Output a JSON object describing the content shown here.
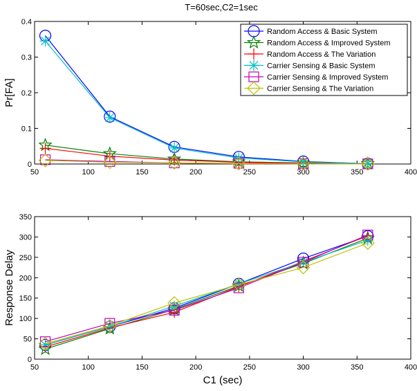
{
  "chart_data": [
    {
      "type": "line",
      "title": "T=60sec,C2=1sec",
      "xlabel": "",
      "ylabel": "Pr[FA]",
      "xlim": [
        50,
        400
      ],
      "ylim": [
        0,
        0.4
      ],
      "xticks": [
        "50",
        "100",
        "150",
        "200",
        "250",
        "300",
        "350",
        "400"
      ],
      "yticks": [
        "0",
        "0.1",
        "0.2",
        "0.3",
        "0.4"
      ],
      "legend_position": "top-right",
      "x": [
        60,
        120,
        180,
        240,
        300,
        360
      ],
      "series": [
        {
          "name": "Random Access & Basic System",
          "color": "#0000ff",
          "marker": "circle",
          "values": [
            0.36,
            0.133,
            0.048,
            0.02,
            0.007,
            0.001
          ]
        },
        {
          "name": "Random Access & Improved System",
          "color": "#008000",
          "marker": "star",
          "values": [
            0.053,
            0.029,
            0.014,
            0.006,
            0.003,
            0.001
          ]
        },
        {
          "name": "Random Access & The Variation",
          "color": "#ff0000",
          "marker": "plus",
          "values": [
            0.044,
            0.022,
            0.011,
            0.005,
            0.002,
            0.001
          ]
        },
        {
          "name": "Carrier Sensing & Basic System",
          "color": "#00bfbf",
          "marker": "asterisk",
          "values": [
            0.345,
            0.13,
            0.045,
            0.017,
            0.006,
            0.001
          ]
        },
        {
          "name": "Carrier Sensing & Improved System",
          "color": "#bf00bf",
          "marker": "square",
          "values": [
            0.012,
            0.007,
            0.003,
            0.002,
            0.001,
            0.0005
          ]
        },
        {
          "name": "Carrier Sensing & The Variation",
          "color": "#bfbf00",
          "marker": "diamond",
          "values": [
            0.01,
            0.005,
            0.003,
            0.001,
            0.0005,
            0.0002
          ]
        }
      ]
    },
    {
      "type": "line",
      "title": "",
      "xlabel": "C1 (sec)",
      "ylabel": "Response Delay",
      "xlim": [
        50,
        400
      ],
      "ylim": [
        0,
        350
      ],
      "xticks": [
        "50",
        "100",
        "150",
        "200",
        "250",
        "300",
        "350",
        "400"
      ],
      "yticks": [
        "0",
        "50",
        "100",
        "150",
        "200",
        "250",
        "300",
        "350"
      ],
      "x": [
        60,
        120,
        180,
        240,
        300,
        360
      ],
      "series": [
        {
          "name": "Random Access & Basic System",
          "color": "#0000ff",
          "marker": "circle",
          "values": [
            35,
            80,
            125,
            185,
            247,
            302
          ]
        },
        {
          "name": "Random Access & Improved System",
          "color": "#008000",
          "marker": "star",
          "values": [
            25,
            75,
            122,
            180,
            235,
            297
          ]
        },
        {
          "name": "Random Access & The Variation",
          "color": "#ff0000",
          "marker": "plus",
          "values": [
            30,
            77,
            115,
            178,
            240,
            303
          ]
        },
        {
          "name": "Carrier Sensing & Basic System",
          "color": "#00bfbf",
          "marker": "asterisk",
          "values": [
            35,
            80,
            130,
            185,
            238,
            292
          ]
        },
        {
          "name": "Carrier Sensing & Improved System",
          "color": "#bf00bf",
          "marker": "square",
          "values": [
            43,
            88,
            120,
            175,
            238,
            305
          ]
        },
        {
          "name": "Carrier Sensing & The Variation",
          "color": "#bfbf00",
          "marker": "diamond",
          "values": [
            38,
            82,
            138,
            183,
            225,
            285
          ]
        }
      ]
    }
  ]
}
